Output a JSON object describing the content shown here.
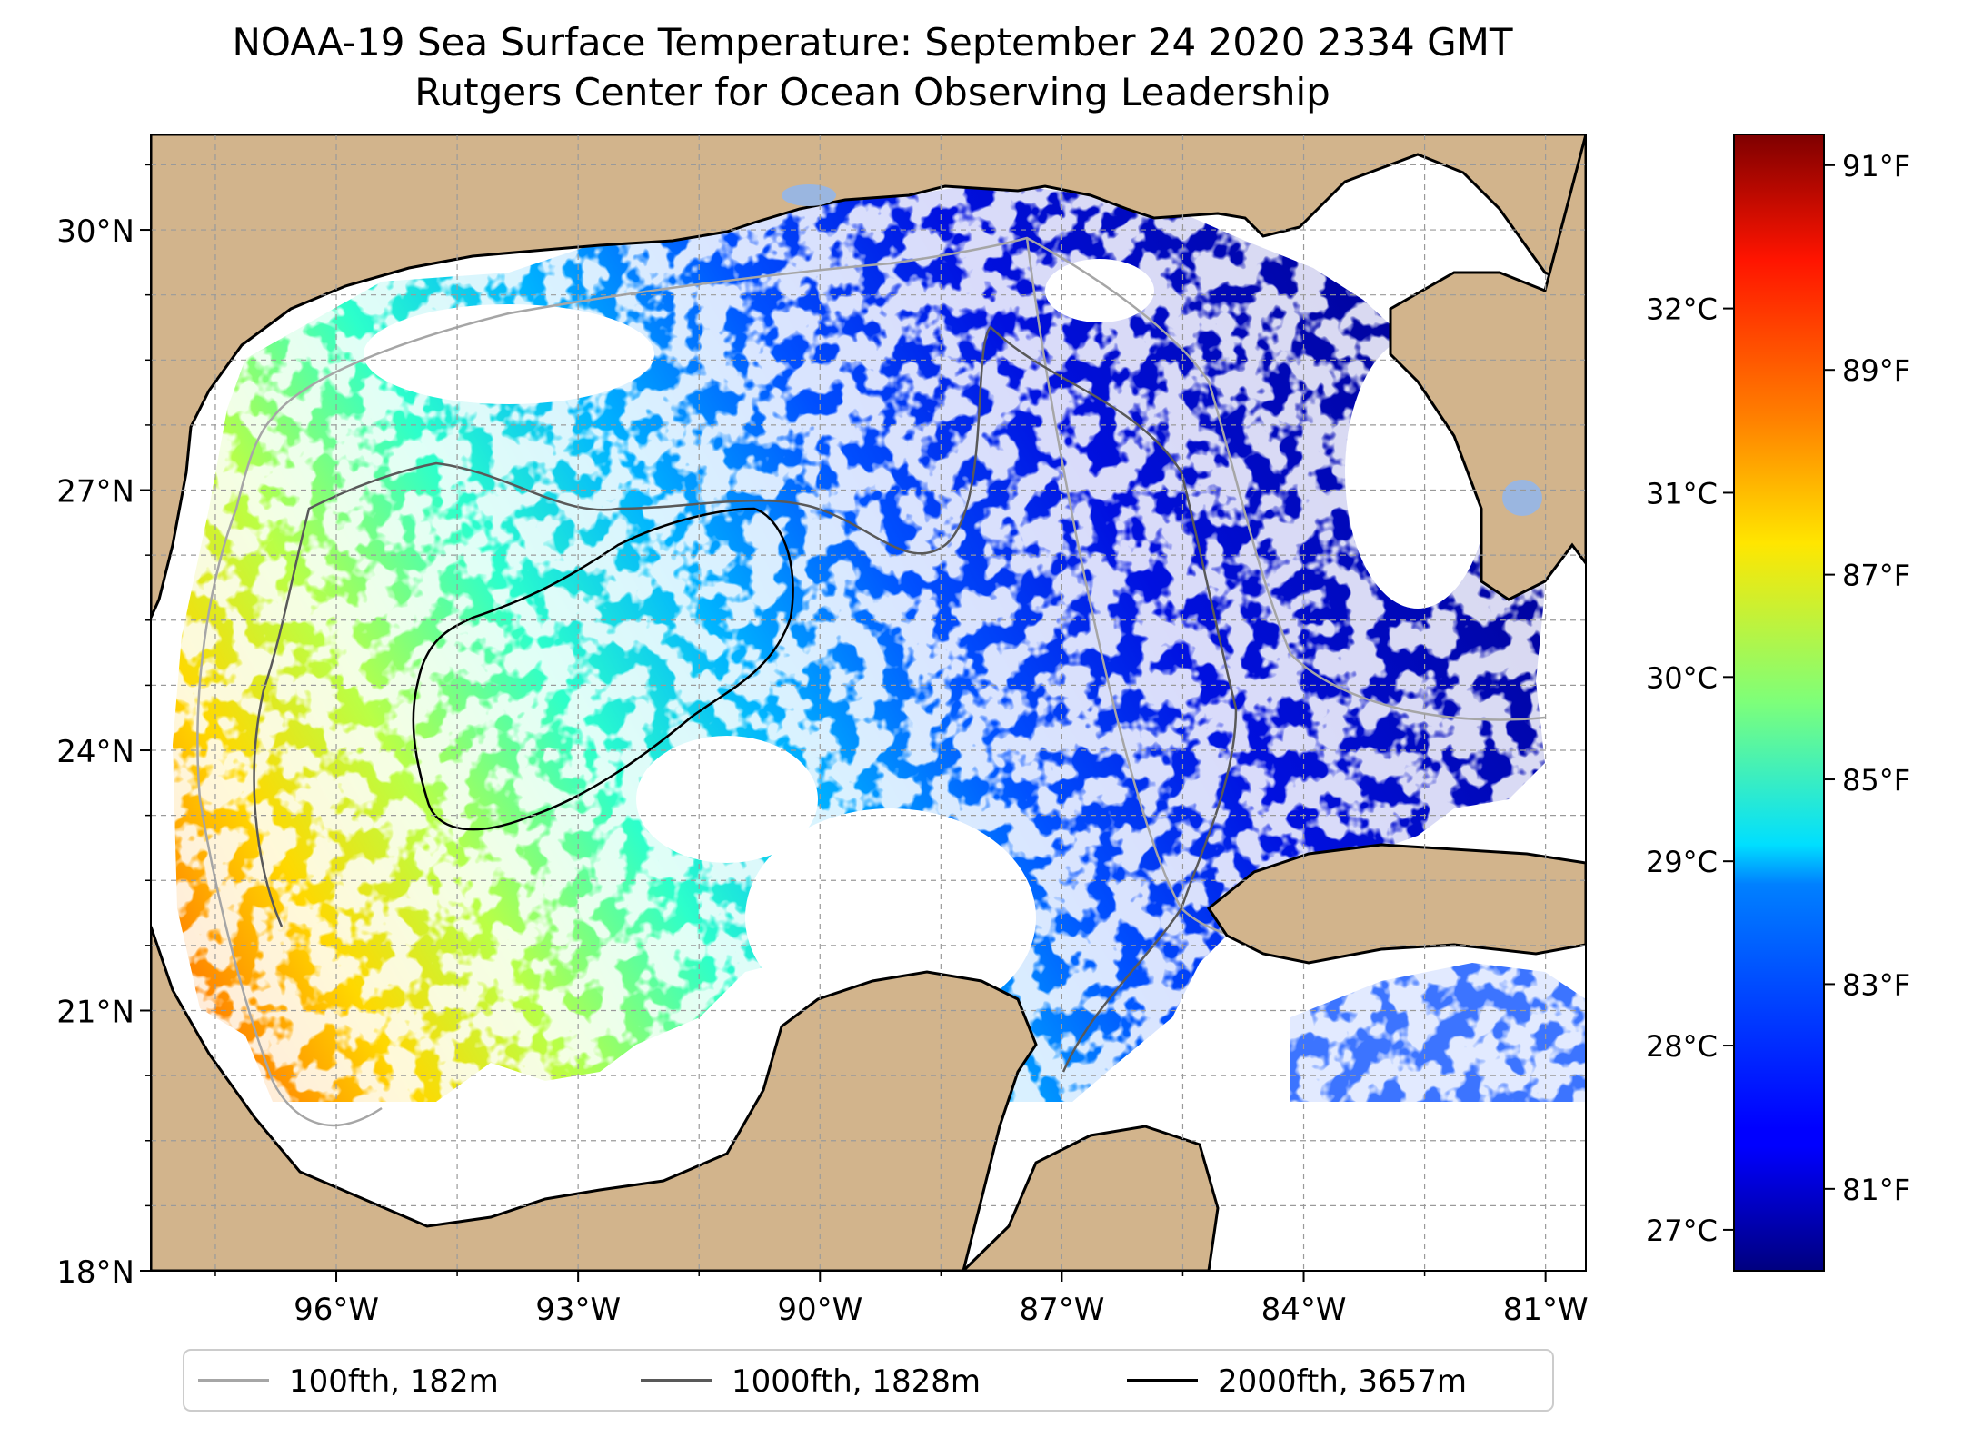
{
  "title": {
    "line1": "NOAA-19 Sea Surface Temperature: September 24 2020 2334 GMT",
    "line2": "Rutgers Center for Ocean Observing Leadership"
  },
  "map": {
    "lon_range": [
      -98.3,
      -80.5
    ],
    "lat_range": [
      18,
      31.1
    ],
    "lat_ticks": [
      {
        "value": 18,
        "label": "18°N"
      },
      {
        "value": 21,
        "label": "21°N"
      },
      {
        "value": 24,
        "label": "24°N"
      },
      {
        "value": 27,
        "label": "27°N"
      },
      {
        "value": 30,
        "label": "30°N"
      }
    ],
    "lon_ticks": [
      {
        "value": -96,
        "label": "96°W"
      },
      {
        "value": -93,
        "label": "93°W"
      },
      {
        "value": -90,
        "label": "90°W"
      },
      {
        "value": -87,
        "label": "87°W"
      },
      {
        "value": -84,
        "label": "84°W"
      },
      {
        "value": -81,
        "label": "81°W"
      }
    ],
    "gridlines": true,
    "land_color": "#d2b48c",
    "lake_color": "#9ab6e0",
    "no_data_color": "#ffffff"
  },
  "colorbar": {
    "colormap": "jet",
    "range_f": [
      80.2,
      91.3
    ],
    "f_ticks": [
      {
        "value": 81,
        "label": "81°F"
      },
      {
        "value": 83,
        "label": "83°F"
      },
      {
        "value": 85,
        "label": "85°F"
      },
      {
        "value": 87,
        "label": "87°F"
      },
      {
        "value": 89,
        "label": "89°F"
      },
      {
        "value": 91,
        "label": "91°F"
      }
    ],
    "c_ticks": [
      {
        "value": 27,
        "label": "27°C"
      },
      {
        "value": 28,
        "label": "28°C"
      },
      {
        "value": 29,
        "label": "29°C"
      },
      {
        "value": 30,
        "label": "30°C"
      },
      {
        "value": 31,
        "label": "31°C"
      },
      {
        "value": 32,
        "label": "32°C"
      }
    ]
  },
  "legend": {
    "placement": "bottom-center",
    "items": [
      {
        "label": "100fth, 182m",
        "color": "#a6a6a6"
      },
      {
        "label": "1000fth, 1828m",
        "color": "#595959"
      },
      {
        "label": "2000fth, 3657m",
        "color": "#000000"
      }
    ]
  }
}
